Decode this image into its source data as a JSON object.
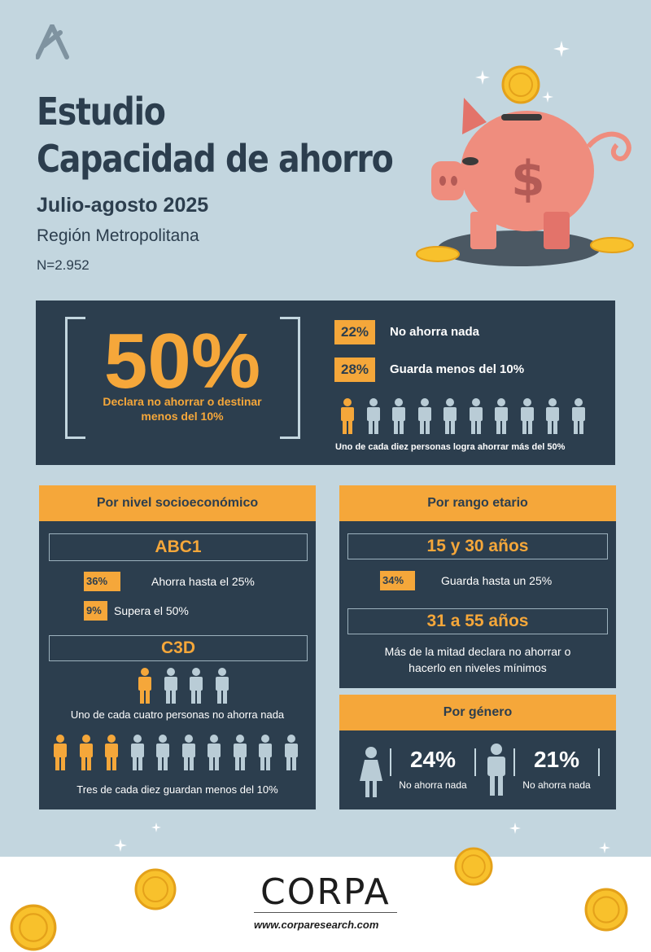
{
  "header": {
    "title_line1": "Estudio",
    "title_line2": "Capacidad de ahorro",
    "subtitle": "Julio-agosto 2025",
    "region": "Región Metropolitana",
    "sample": "N=2.952"
  },
  "summary": {
    "headline_pct": "50%",
    "headline_caption": "Declara no ahorrar o destinar menos del 10%",
    "items": [
      {
        "pct": "22%",
        "label": "No ahorra nada"
      },
      {
        "pct": "28%",
        "label": "Guarda menos del 10%"
      }
    ],
    "people_highlighted": 1,
    "people_total": 10,
    "people_caption": "Uno de cada diez personas logra ahorrar más del 50%"
  },
  "socioeconomic": {
    "header": "Por nivel socioeconómico",
    "abc1": {
      "label": "ABC1",
      "items": [
        {
          "pct": "36%",
          "label": "Ahorra hasta el 25%"
        },
        {
          "pct": "9%",
          "label": "Supera el 50%"
        }
      ]
    },
    "c3d": {
      "label": "C3D",
      "row1_highlighted": 1,
      "row1_total": 4,
      "row1_caption": "Uno de cada cuatro personas no ahorra nada",
      "row2_highlighted": 3,
      "row2_total": 10,
      "row2_caption": "Tres de cada diez guardan menos del 10%"
    }
  },
  "age": {
    "header": "Por rango etario",
    "group1": {
      "label": "15 y 30 años",
      "pct": "34%",
      "text": "Guarda hasta un 25%"
    },
    "group2": {
      "label": "31 a 55 años",
      "text_line1": "Más de la mitad declara no ahorrar o",
      "text_line2": "hacerlo en niveles mínimos"
    }
  },
  "gender": {
    "header": "Por género",
    "female": {
      "pct": "24%",
      "label": "No ahorra nada"
    },
    "male": {
      "pct": "21%",
      "label": "No ahorra nada"
    }
  },
  "footer": {
    "logo": "CORPA",
    "url": "www.corparesearch.com"
  },
  "colors": {
    "background": "#c3d6df",
    "navy": "#2c3e4e",
    "accent": "#f5a73a",
    "piggy": "#ef8d7e",
    "coin": "#f8c12c",
    "person_inactive": "#b9ccd6"
  },
  "icons": [
    "corpa-mark-icon",
    "piggy-bank-icon",
    "coin-icon",
    "sparkle-icon",
    "person-icon",
    "woman-icon",
    "man-icon"
  ]
}
